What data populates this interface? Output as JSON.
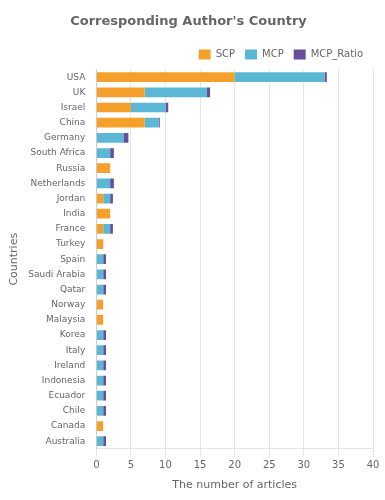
{
  "chart_data": {
    "type": "bar",
    "orientation": "horizontal",
    "stacked": true,
    "title": "Corresponding Author's Country",
    "xlabel": "The number of articles",
    "ylabel": "Countries",
    "categories": [
      "USA",
      "UK",
      "Israel",
      "China",
      "Germany",
      "South Africa",
      "Russia",
      "Netherlands",
      "Jordan",
      "India",
      "France",
      "Turkey",
      "Spain",
      "Saudi Arabia",
      "Qatar",
      "Norway",
      "Malaysia",
      "Korea",
      "Italy",
      "Ireland",
      "Indonesia",
      "Ecuador",
      "Chile",
      "Canada",
      "Australia"
    ],
    "series": [
      {
        "name": "SCP",
        "color": "#F5A02A",
        "values": [
          20,
          7,
          5,
          7,
          0,
          0,
          2,
          0,
          1,
          2,
          1,
          1,
          0,
          0,
          0,
          1,
          1,
          0,
          0,
          0,
          0,
          0,
          0,
          1,
          0
        ]
      },
      {
        "name": "MCP",
        "color": "#5BB8D4",
        "values": [
          13,
          9,
          5,
          2,
          4,
          2,
          0,
          2,
          1,
          0,
          1,
          0,
          1,
          1,
          1,
          0,
          0,
          1,
          1,
          1,
          1,
          1,
          1,
          0,
          1
        ]
      },
      {
        "name": "MCP_Ratio",
        "color": "#6A4C9C",
        "values": [
          0.32,
          0.448,
          0.4,
          0.176,
          0.64,
          0.536,
          0,
          0.536,
          0.4,
          0,
          0.4,
          0,
          0.4,
          0.4,
          0.4,
          0,
          0,
          0.4,
          0.4,
          0.4,
          0.4,
          0.4,
          0.4,
          0,
          0.4
        ]
      }
    ],
    "xlim": [
      0,
      40
    ],
    "xticks": [
      0,
      5,
      10,
      15,
      20,
      25,
      30,
      35,
      40
    ],
    "grid": true,
    "legend": "upper right"
  }
}
